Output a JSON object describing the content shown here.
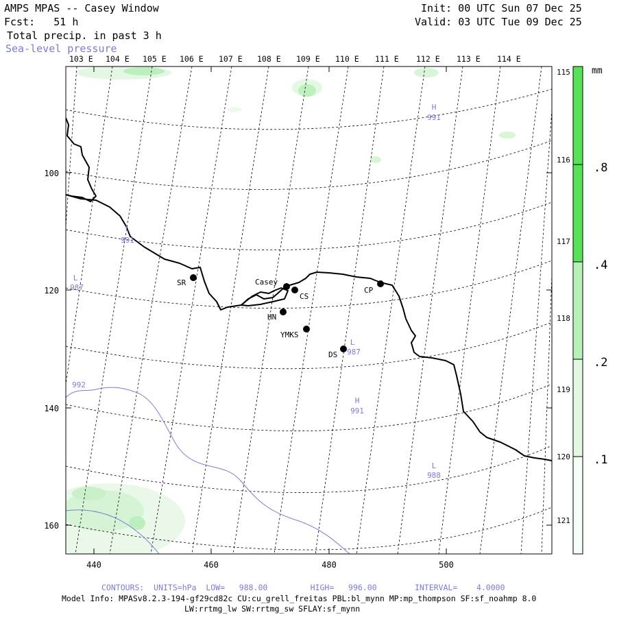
{
  "header": {
    "title": "AMPS MPAS -- Casey Window",
    "forecast": "Fcst:   51 h",
    "field": "Total precip. in past 3 h",
    "overlay": "Sea-level pressure",
    "init": "Init: 00 UTC Sun 07 Dec 25",
    "valid": "Valid: 03 UTC Tue 09 Dec 25"
  },
  "map": {
    "top_longitudes": [
      "103 E",
      "104 E",
      "105 E",
      "106 E",
      "107 E",
      "108 E",
      "109 E",
      "110 E",
      "111 E",
      "112 E",
      "113 E",
      "114 E"
    ],
    "right_longitudes": [
      "115 E",
      "116 E",
      "117 E",
      "118 E",
      "119 E",
      "120 E",
      "121 E"
    ],
    "y_ticks": [
      "100",
      "120",
      "140",
      "160"
    ],
    "x_ticks": [
      "440",
      "460",
      "480",
      "500"
    ],
    "stations": [
      {
        "name": "SR"
      },
      {
        "name": "Casey"
      },
      {
        "name": "CS"
      },
      {
        "name": "HN"
      },
      {
        "name": "YMKS"
      },
      {
        "name": "DS"
      },
      {
        "name": "CP"
      }
    ],
    "pressure_labels": [
      {
        "sym": "H",
        "val": "991"
      },
      {
        "sym": "L",
        "val": "991"
      },
      {
        "sym": "L",
        "val": "987"
      },
      {
        "sym": "L",
        "val": "987"
      },
      {
        "sym": "H",
        "val": "991"
      },
      {
        "sym": "L",
        "val": "988"
      }
    ],
    "isobar_label": "992",
    "colors": {
      "isobar": "#7b7bd6",
      "coast": "#000000",
      "grid": "#000000",
      "precip_light": "#e6f7e6",
      "precip_mid": "#bfeebf",
      "precip_strong": "#6fe06f"
    }
  },
  "colorbar": {
    "unit": "mm",
    "labels": [
      ".8",
      ".4",
      ".2",
      ".1"
    ],
    "colors": [
      "#58e058",
      "#b8f0b8",
      "#e2f8e2",
      "#f3fcf3"
    ]
  },
  "footer": {
    "contours": "CONTOURS:  UNITS=hPa  LOW=   988.00         HIGH=   996.00        INTERVAL=    4.0000",
    "model_info": "Model Info: MPASv8.2.3-194-gf29cd82c CU:cu_grell_freitas PBL:bl_mynn MP:mp_thompson SF:sf_noahmp 8.0",
    "model_info_2": "LW:rrtmg_lw SW:rrtmg_sw SFLAY:sf_mynn"
  }
}
